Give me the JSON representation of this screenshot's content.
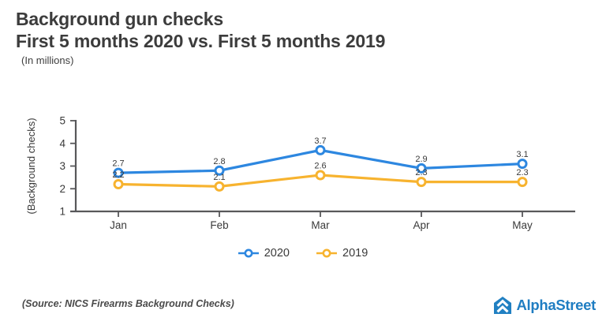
{
  "header": {
    "title_line1": "Background gun checks",
    "title_line2": "First 5 months 2020 vs. First 5 months 2019",
    "units_note": "(In millions)"
  },
  "chart_data": {
    "type": "line",
    "title": "Background gun checks",
    "subtitle": "First 5 months 2020 vs. First 5 months 2019",
    "categories": [
      "Jan",
      "Feb",
      "Mar",
      "Apr",
      "May"
    ],
    "series": [
      {
        "name": "2020",
        "color": "#2d87e0",
        "values": [
          2.7,
          2.8,
          3.7,
          2.9,
          3.1
        ]
      },
      {
        "name": "2019",
        "color": "#f7b32f",
        "values": [
          2.2,
          2.1,
          2.6,
          2.3,
          2.3
        ]
      }
    ],
    "ylabel": "(Background checks)",
    "ylim": [
      1,
      5
    ],
    "yticks": [
      1,
      2,
      3,
      4,
      5
    ],
    "grid": false,
    "data_labels": true,
    "legend_position": "bottom"
  },
  "footer": {
    "source": "(Source: NICS Firearms Background Checks)",
    "brand": "AlphaStreet"
  },
  "colors": {
    "text_dark": "#3c3c3c",
    "axis": "#58585a",
    "series_2020": "#2d87e0",
    "series_2019": "#f7b32f",
    "brand_blue": "#1f7dc2"
  }
}
